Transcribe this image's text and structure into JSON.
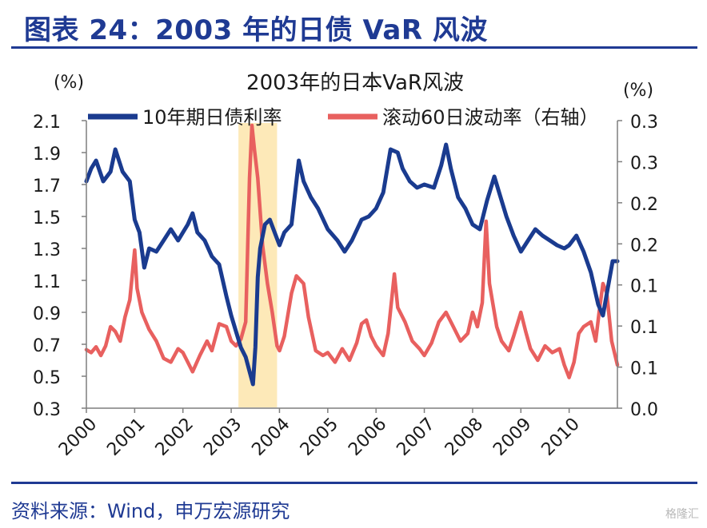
{
  "page_title": "图表 24：2003 年的日债 VaR 风波",
  "source": "资料来源：Wind，申万宏源研究",
  "watermark": "格隆汇",
  "colors": {
    "navy": "#1a3b8f",
    "red": "#e8605f",
    "highlight": "#fde9b8",
    "axis": "#7f7f7f"
  },
  "chart_data": {
    "type": "line",
    "title": "2003年的日本VaR风波",
    "ylabel_left": "(%)",
    "ylabel_right": "(%)",
    "legend_position": "top",
    "grid": false,
    "x_ticks": [
      "2000",
      "2001",
      "2002",
      "2003",
      "2004",
      "2005",
      "2006",
      "2007",
      "2008",
      "2009",
      "2010"
    ],
    "xlim": [
      2000.0,
      2011.0
    ],
    "y_left": {
      "ticks": [
        "0.3",
        "0.5",
        "0.7",
        "0.9",
        "1.1",
        "1.3",
        "1.5",
        "1.7",
        "1.9",
        "2.1"
      ],
      "lim": [
        0.3,
        2.1
      ]
    },
    "y_right": {
      "ticks": [
        "0.0",
        "0.1",
        "0.1",
        "0.1",
        "0.2",
        "0.2",
        "0.3",
        "0.3"
      ],
      "lim": [
        0.0,
        0.3
      ]
    },
    "highlight_range": [
      2003.15,
      2003.95
    ],
    "series": [
      {
        "name": "10年期日债利率",
        "axis": "left",
        "points": [
          [
            2000.0,
            1.72
          ],
          [
            2000.1,
            1.8
          ],
          [
            2000.2,
            1.85
          ],
          [
            2000.35,
            1.72
          ],
          [
            2000.5,
            1.78
          ],
          [
            2000.6,
            1.92
          ],
          [
            2000.75,
            1.78
          ],
          [
            2000.9,
            1.72
          ],
          [
            2001.0,
            1.48
          ],
          [
            2001.1,
            1.4
          ],
          [
            2001.2,
            1.18
          ],
          [
            2001.3,
            1.3
          ],
          [
            2001.45,
            1.28
          ],
          [
            2001.6,
            1.35
          ],
          [
            2001.75,
            1.42
          ],
          [
            2001.9,
            1.35
          ],
          [
            2002.0,
            1.4
          ],
          [
            2002.1,
            1.45
          ],
          [
            2002.2,
            1.52
          ],
          [
            2002.3,
            1.4
          ],
          [
            2002.45,
            1.35
          ],
          [
            2002.6,
            1.25
          ],
          [
            2002.75,
            1.2
          ],
          [
            2002.9,
            1.0
          ],
          [
            2003.0,
            0.88
          ],
          [
            2003.1,
            0.78
          ],
          [
            2003.2,
            0.68
          ],
          [
            2003.3,
            0.62
          ],
          [
            2003.45,
            0.45
          ],
          [
            2003.5,
            0.68
          ],
          [
            2003.55,
            1.12
          ],
          [
            2003.6,
            1.3
          ],
          [
            2003.7,
            1.45
          ],
          [
            2003.8,
            1.48
          ],
          [
            2003.9,
            1.4
          ],
          [
            2004.0,
            1.32
          ],
          [
            2004.1,
            1.4
          ],
          [
            2004.25,
            1.45
          ],
          [
            2004.4,
            1.85
          ],
          [
            2004.5,
            1.72
          ],
          [
            2004.65,
            1.62
          ],
          [
            2004.8,
            1.55
          ],
          [
            2005.0,
            1.42
          ],
          [
            2005.2,
            1.35
          ],
          [
            2005.35,
            1.28
          ],
          [
            2005.5,
            1.35
          ],
          [
            2005.7,
            1.48
          ],
          [
            2005.85,
            1.5
          ],
          [
            2006.0,
            1.55
          ],
          [
            2006.15,
            1.65
          ],
          [
            2006.3,
            1.92
          ],
          [
            2006.45,
            1.9
          ],
          [
            2006.55,
            1.8
          ],
          [
            2006.7,
            1.72
          ],
          [
            2006.85,
            1.68
          ],
          [
            2007.0,
            1.7
          ],
          [
            2007.2,
            1.68
          ],
          [
            2007.35,
            1.82
          ],
          [
            2007.45,
            1.95
          ],
          [
            2007.55,
            1.8
          ],
          [
            2007.7,
            1.62
          ],
          [
            2007.85,
            1.55
          ],
          [
            2008.0,
            1.45
          ],
          [
            2008.15,
            1.42
          ],
          [
            2008.3,
            1.6
          ],
          [
            2008.45,
            1.75
          ],
          [
            2008.55,
            1.65
          ],
          [
            2008.7,
            1.5
          ],
          [
            2008.85,
            1.38
          ],
          [
            2009.0,
            1.28
          ],
          [
            2009.15,
            1.35
          ],
          [
            2009.3,
            1.42
          ],
          [
            2009.45,
            1.38
          ],
          [
            2009.6,
            1.35
          ],
          [
            2009.75,
            1.32
          ],
          [
            2009.9,
            1.3
          ],
          [
            2010.0,
            1.32
          ],
          [
            2010.15,
            1.38
          ],
          [
            2010.3,
            1.28
          ],
          [
            2010.45,
            1.15
          ],
          [
            2010.6,
            0.95
          ],
          [
            2010.7,
            0.88
          ],
          [
            2010.8,
            1.05
          ],
          [
            2010.9,
            1.22
          ],
          [
            2011.0,
            1.22
          ]
        ]
      },
      {
        "name": "滚动60日波动率（右轴）",
        "axis": "right",
        "points": [
          [
            2000.0,
            0.061
          ],
          [
            2000.1,
            0.058
          ],
          [
            2000.2,
            0.064
          ],
          [
            2000.3,
            0.055
          ],
          [
            2000.4,
            0.065
          ],
          [
            2000.5,
            0.085
          ],
          [
            2000.6,
            0.08
          ],
          [
            2000.7,
            0.07
          ],
          [
            2000.8,
            0.095
          ],
          [
            2000.9,
            0.113
          ],
          [
            2001.0,
            0.165
          ],
          [
            2001.05,
            0.125
          ],
          [
            2001.15,
            0.1
          ],
          [
            2001.3,
            0.082
          ],
          [
            2001.45,
            0.07
          ],
          [
            2001.6,
            0.052
          ],
          [
            2001.75,
            0.048
          ],
          [
            2001.9,
            0.062
          ],
          [
            2002.0,
            0.058
          ],
          [
            2002.1,
            0.048
          ],
          [
            2002.2,
            0.038
          ],
          [
            2002.35,
            0.055
          ],
          [
            2002.5,
            0.07
          ],
          [
            2002.6,
            0.06
          ],
          [
            2002.75,
            0.088
          ],
          [
            2002.9,
            0.085
          ],
          [
            2003.0,
            0.07
          ],
          [
            2003.1,
            0.065
          ],
          [
            2003.2,
            0.072
          ],
          [
            2003.3,
            0.09
          ],
          [
            2003.38,
            0.24
          ],
          [
            2003.43,
            0.295
          ],
          [
            2003.48,
            0.27
          ],
          [
            2003.55,
            0.24
          ],
          [
            2003.65,
            0.17
          ],
          [
            2003.75,
            0.13
          ],
          [
            2003.85,
            0.1
          ],
          [
            2003.95,
            0.065
          ],
          [
            2004.0,
            0.06
          ],
          [
            2004.1,
            0.075
          ],
          [
            2004.25,
            0.12
          ],
          [
            2004.35,
            0.138
          ],
          [
            2004.5,
            0.13
          ],
          [
            2004.6,
            0.095
          ],
          [
            2004.75,
            0.06
          ],
          [
            2004.9,
            0.055
          ],
          [
            2005.0,
            0.058
          ],
          [
            2005.15,
            0.048
          ],
          [
            2005.3,
            0.062
          ],
          [
            2005.45,
            0.05
          ],
          [
            2005.6,
            0.068
          ],
          [
            2005.7,
            0.088
          ],
          [
            2005.8,
            0.092
          ],
          [
            2005.9,
            0.075
          ],
          [
            2006.0,
            0.065
          ],
          [
            2006.15,
            0.055
          ],
          [
            2006.25,
            0.078
          ],
          [
            2006.38,
            0.14
          ],
          [
            2006.45,
            0.105
          ],
          [
            2006.6,
            0.09
          ],
          [
            2006.75,
            0.07
          ],
          [
            2006.9,
            0.062
          ],
          [
            2007.0,
            0.055
          ],
          [
            2007.15,
            0.068
          ],
          [
            2007.3,
            0.09
          ],
          [
            2007.45,
            0.1
          ],
          [
            2007.6,
            0.085
          ],
          [
            2007.75,
            0.07
          ],
          [
            2007.9,
            0.078
          ],
          [
            2008.0,
            0.1
          ],
          [
            2008.1,
            0.085
          ],
          [
            2008.2,
            0.11
          ],
          [
            2008.28,
            0.195
          ],
          [
            2008.35,
            0.13
          ],
          [
            2008.5,
            0.085
          ],
          [
            2008.6,
            0.07
          ],
          [
            2008.75,
            0.06
          ],
          [
            2008.85,
            0.075
          ],
          [
            2009.0,
            0.1
          ],
          [
            2009.1,
            0.08
          ],
          [
            2009.2,
            0.062
          ],
          [
            2009.35,
            0.05
          ],
          [
            2009.5,
            0.065
          ],
          [
            2009.65,
            0.058
          ],
          [
            2009.8,
            0.062
          ],
          [
            2009.9,
            0.045
          ],
          [
            2010.0,
            0.032
          ],
          [
            2010.1,
            0.048
          ],
          [
            2010.2,
            0.078
          ],
          [
            2010.3,
            0.085
          ],
          [
            2010.45,
            0.09
          ],
          [
            2010.55,
            0.07
          ],
          [
            2010.62,
            0.1
          ],
          [
            2010.7,
            0.13
          ],
          [
            2010.78,
            0.12
          ],
          [
            2010.88,
            0.07
          ],
          [
            2011.0,
            0.045
          ]
        ]
      }
    ]
  }
}
